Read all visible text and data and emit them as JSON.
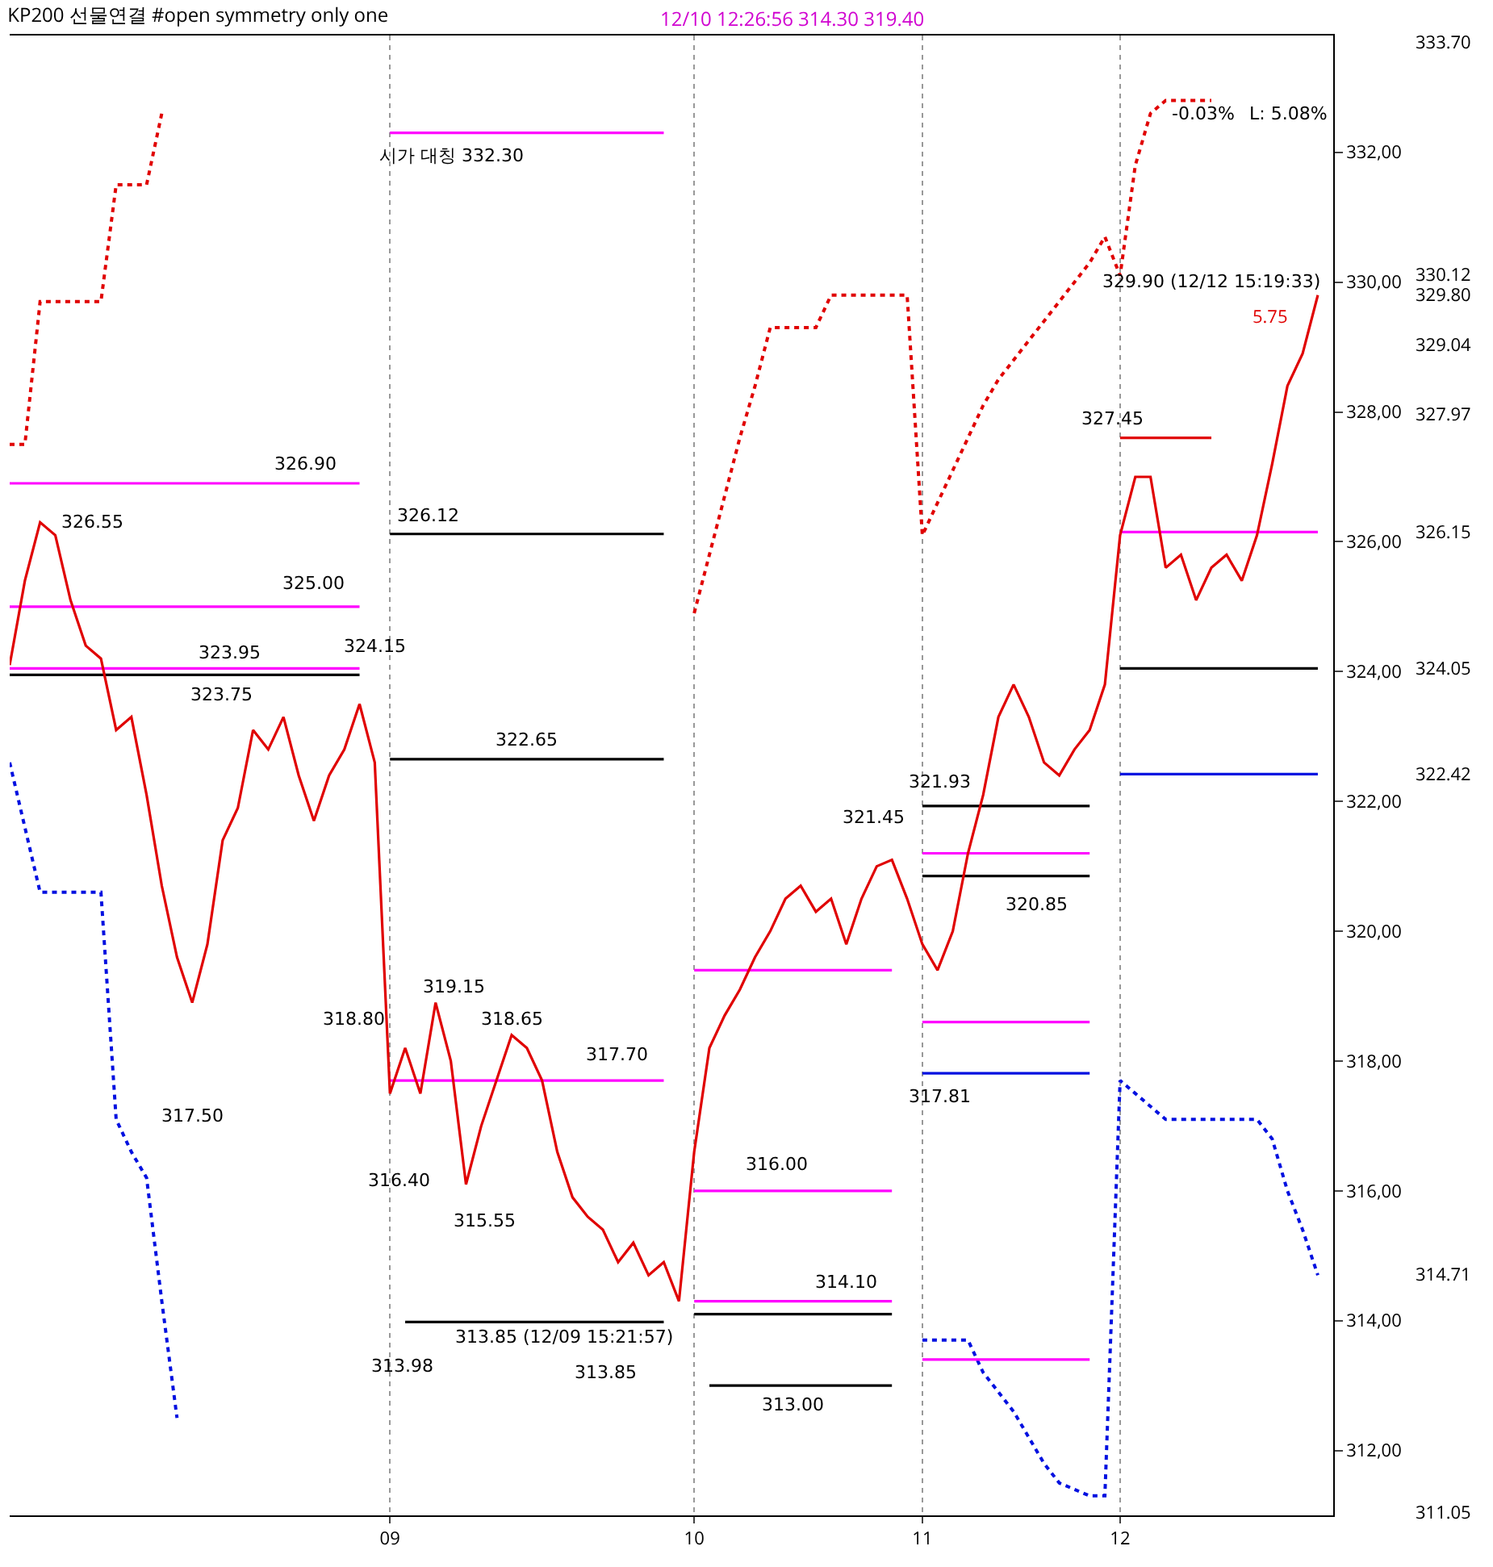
{
  "chart_data": {
    "type": "line",
    "title": "KP200 선물연결 #open symmetry only one",
    "subtitle": "12/10 12:26:56 314.30 319.40",
    "categories": [
      null,
      null,
      null,
      null,
      null,
      null,
      null,
      null,
      null,
      null,
      null,
      null,
      null,
      null,
      null,
      null,
      null,
      null,
      null,
      null,
      null,
      null,
      null,
      null,
      null,
      "09",
      null,
      null,
      null,
      null,
      null,
      null,
      null,
      null,
      null,
      null,
      null,
      null,
      null,
      null,
      null,
      null,
      null,
      null,
      null,
      "10",
      null,
      null,
      null,
      null,
      null,
      null,
      null,
      null,
      null,
      null,
      null,
      null,
      null,
      null,
      "11",
      null,
      null,
      null,
      null,
      null,
      null,
      null,
      null,
      null,
      null,
      null,
      null,
      "12",
      null,
      null,
      null,
      null,
      null,
      null,
      null,
      null,
      null,
      null,
      null,
      null,
      null,
      null
    ],
    "ylim": [
      311.0,
      333.8
    ],
    "yticks": [
      {
        "value": 312,
        "label": "312,00"
      },
      {
        "value": 314,
        "label": "314,00"
      },
      {
        "value": 316,
        "label": "316,00"
      },
      {
        "value": 318,
        "label": "318,00"
      },
      {
        "value": 320,
        "label": "320,00"
      },
      {
        "value": 322,
        "label": "322,00"
      },
      {
        "value": 324,
        "label": "324,00"
      },
      {
        "value": 326,
        "label": "326,00"
      },
      {
        "value": 328,
        "label": "328,00"
      },
      {
        "value": 330,
        "label": "330,00"
      },
      {
        "value": 332,
        "label": "332,00"
      }
    ],
    "y2lim": [
      311.0,
      333.8
    ],
    "y2ticks": [
      {
        "value": 333.7,
        "label": "333.70"
      },
      {
        "value": 330.12,
        "label": "330.12"
      },
      {
        "value": 329.8,
        "label": "329.80"
      },
      {
        "value": 329.04,
        "label": "329.04"
      },
      {
        "value": 327.97,
        "label": "327.97"
      },
      {
        "value": 326.15,
        "label": "326.15"
      },
      {
        "value": 324.05,
        "label": "324.05"
      },
      {
        "value": 322.42,
        "label": "322.42"
      },
      {
        "value": 314.71,
        "label": "314.71"
      },
      {
        "value": 311.05,
        "label": "311.05"
      }
    ],
    "grid": "x",
    "marker": "none",
    "series": [
      {
        "color": "#e00000",
        "line_style": "solid",
        "axis": "y2",
        "values": [
          324.1,
          325.4,
          326.3,
          326.1,
          325.1,
          324.4,
          324.2,
          323.1,
          323.3,
          322.1,
          320.7,
          319.6,
          318.9,
          319.8,
          321.4,
          321.9,
          323.1,
          322.8,
          323.3,
          322.4,
          321.7,
          322.4,
          322.8,
          323.5,
          322.6,
          317.5,
          318.2,
          317.5,
          318.9,
          318.0,
          316.1,
          317.0,
          317.7,
          318.4,
          318.2,
          317.7,
          316.6,
          315.9,
          315.6,
          315.4,
          314.9,
          315.2,
          314.7,
          314.9,
          314.3,
          316.6,
          318.2,
          318.7,
          319.1,
          319.6,
          320.0,
          320.5,
          320.7,
          320.3,
          320.5,
          319.8,
          320.5,
          321.0,
          321.1,
          320.5,
          319.8,
          319.4,
          320.0,
          321.2,
          322.1,
          323.3,
          323.8,
          323.3,
          322.6,
          322.4,
          322.8,
          323.1,
          323.8,
          326.1,
          327.0,
          327.0,
          325.6,
          325.8,
          325.1,
          325.6,
          325.8,
          325.4,
          326.1,
          327.2,
          328.4,
          328.9,
          329.8,
          null
        ]
      },
      {
        "color": "#e00000",
        "line_style": "dotted",
        "values": [
          327.5,
          327.5,
          329.7,
          329.7,
          329.7,
          329.7,
          329.7,
          331.5,
          331.5,
          331.5,
          332.6,
          null,
          null,
          null,
          null,
          null,
          null,
          null,
          null,
          null,
          null,
          null,
          null,
          null,
          null,
          null,
          null,
          null,
          null,
          null,
          null,
          null,
          null,
          null,
          null,
          null,
          null,
          null,
          null,
          null,
          null,
          null,
          null,
          null,
          null,
          324.9,
          325.8,
          326.7,
          327.6,
          328.4,
          329.3,
          329.3,
          329.3,
          329.3,
          329.8,
          329.8,
          329.8,
          329.8,
          329.8,
          329.8,
          326.1,
          326.6,
          327.1,
          327.6,
          328.1,
          328.5,
          328.8,
          329.1,
          329.4,
          329.7,
          330.0,
          330.3,
          330.7,
          330.1,
          331.8,
          332.6,
          332.8,
          332.8,
          332.8,
          332.8,
          null,
          null,
          null,
          null,
          null,
          null,
          null,
          null
        ]
      },
      {
        "color": "#0010e0",
        "line_style": "dotted",
        "values": [
          322.6,
          321.6,
          320.6,
          320.6,
          320.6,
          320.6,
          320.6,
          317.1,
          316.6,
          316.2,
          314.3,
          312.5,
          null,
          null,
          null,
          null,
          null,
          null,
          null,
          null,
          null,
          null,
          null,
          null,
          null,
          null,
          null,
          null,
          null,
          null,
          null,
          null,
          null,
          null,
          null,
          null,
          null,
          null,
          null,
          null,
          null,
          null,
          null,
          null,
          null,
          null,
          null,
          null,
          null,
          null,
          null,
          null,
          null,
          null,
          null,
          null,
          null,
          null,
          null,
          null,
          313.7,
          313.7,
          313.7,
          313.7,
          313.2,
          312.9,
          312.6,
          312.2,
          311.8,
          311.5,
          311.4,
          311.3,
          311.3,
          317.7,
          317.5,
          317.3,
          317.1,
          317.1,
          317.1,
          317.1,
          317.1,
          317.1,
          317.1,
          316.8,
          316.0,
          315.4,
          314.7,
          null
        ]
      },
      {
        "color": "#ff00ff",
        "line_style": "solid",
        "values": [
          325.0,
          325.0,
          325.0,
          325.0,
          325.0,
          325.0,
          325.0,
          325.0,
          325.0,
          325.0,
          325.0,
          325.0,
          325.0,
          325.0,
          325.0,
          325.0,
          325.0,
          325.0,
          325.0,
          325.0,
          325.0,
          325.0,
          325.0,
          325.0,
          null,
          317.7,
          317.7,
          317.7,
          317.7,
          317.7,
          317.7,
          317.7,
          317.7,
          317.7,
          317.7,
          317.7,
          317.7,
          317.7,
          317.7,
          317.7,
          317.7,
          317.7,
          317.7,
          317.7,
          null,
          316.0,
          316.0,
          316.0,
          316.0,
          316.0,
          316.0,
          316.0,
          316.0,
          316.0,
          316.0,
          316.0,
          316.0,
          316.0,
          316.0,
          null,
          318.6,
          318.6,
          318.6,
          318.6,
          318.6,
          318.6,
          318.6,
          318.6,
          318.6,
          318.6,
          318.6,
          318.6,
          null,
          326.15,
          326.15,
          326.15,
          326.15,
          326.15,
          326.15,
          326.15,
          326.15,
          326.15,
          326.15,
          326.15,
          326.15,
          326.15,
          326.15,
          null
        ]
      },
      {
        "color": "#000000",
        "line_style": "solid",
        "values": [
          323.95,
          323.95,
          323.95,
          323.95,
          323.95,
          323.95,
          323.95,
          323.95,
          323.95,
          323.95,
          323.95,
          323.95,
          323.95,
          323.95,
          323.95,
          323.95,
          323.95,
          323.95,
          323.95,
          323.95,
          323.95,
          323.95,
          323.95,
          323.95,
          null,
          322.65,
          322.65,
          322.65,
          322.65,
          322.65,
          322.65,
          322.65,
          322.65,
          322.65,
          322.65,
          322.65,
          322.65,
          322.65,
          322.65,
          322.65,
          322.65,
          322.65,
          322.65,
          322.65,
          null,
          314.1,
          314.1,
          314.1,
          314.1,
          314.1,
          314.1,
          314.1,
          314.1,
          314.1,
          314.1,
          314.1,
          314.1,
          314.1,
          314.1,
          null,
          320.85,
          320.85,
          320.85,
          320.85,
          320.85,
          320.85,
          320.85,
          320.85,
          320.85,
          320.85,
          320.85,
          320.85,
          null,
          324.05,
          324.05,
          324.05,
          324.05,
          324.05,
          324.05,
          324.05,
          324.05,
          324.05,
          324.05,
          324.05,
          324.05,
          324.05,
          324.05,
          null
        ]
      },
      {
        "color": "#ff00ff",
        "line_style": "solid",
        "values": [
          326.9,
          326.9,
          326.9,
          326.9,
          326.9,
          326.9,
          326.9,
          326.9,
          326.9,
          326.9,
          326.9,
          326.9,
          326.9,
          326.9,
          326.9,
          326.9,
          326.9,
          326.9,
          326.9,
          326.9,
          326.9,
          326.9,
          326.9,
          326.9,
          null,
          332.3,
          332.3,
          332.3,
          332.3,
          332.3,
          332.3,
          332.3,
          332.3,
          332.3,
          332.3,
          332.3,
          332.3,
          332.3,
          332.3,
          332.3,
          332.3,
          332.3,
          332.3,
          332.3,
          null,
          319.4,
          319.4,
          319.4,
          319.4,
          319.4,
          319.4,
          319.4,
          319.4,
          319.4,
          319.4,
          319.4,
          319.4,
          319.4,
          319.4,
          null,
          321.2,
          321.2,
          321.2,
          321.2,
          321.2,
          321.2,
          321.2,
          321.2,
          321.2,
          321.2,
          321.2,
          321.2,
          null,
          null,
          null,
          null,
          null,
          null,
          null,
          null,
          null,
          null,
          null,
          null,
          null,
          null,
          null,
          null
        ]
      },
      {
        "color": "#ff00ff",
        "line_style": "solid",
        "values": [
          324.05,
          324.05,
          324.05,
          324.05,
          324.05,
          324.05,
          324.05,
          324.05,
          324.05,
          324.05,
          324.05,
          324.05,
          324.05,
          324.05,
          324.05,
          324.05,
          324.05,
          324.05,
          324.05,
          324.05,
          324.05,
          324.05,
          324.05,
          324.05,
          null,
          null,
          null,
          null,
          null,
          null,
          null,
          null,
          null,
          null,
          null,
          null,
          null,
          null,
          null,
          null,
          null,
          null,
          null,
          null,
          null,
          314.3,
          314.3,
          314.3,
          314.3,
          314.3,
          314.3,
          314.3,
          314.3,
          314.3,
          314.3,
          314.3,
          314.3,
          314.3,
          314.3,
          null,
          313.4,
          313.4,
          313.4,
          313.4,
          313.4,
          313.4,
          313.4,
          313.4,
          313.4,
          313.4,
          313.4,
          313.4,
          null,
          null,
          null,
          null,
          null,
          null,
          null,
          null,
          null,
          null,
          null,
          null,
          null,
          null,
          null,
          null
        ]
      },
      {
        "color": "#000000",
        "line_style": "solid",
        "values": [
          null,
          null,
          null,
          null,
          null,
          null,
          null,
          null,
          null,
          null,
          null,
          null,
          null,
          null,
          null,
          null,
          null,
          null,
          null,
          null,
          null,
          null,
          null,
          null,
          null,
          326.12,
          326.12,
          326.12,
          326.12,
          326.12,
          326.12,
          326.12,
          326.12,
          326.12,
          326.12,
          326.12,
          326.12,
          326.12,
          326.12,
          326.12,
          326.12,
          326.12,
          326.12,
          326.12,
          null,
          null,
          null,
          null,
          null,
          null,
          null,
          null,
          null,
          null,
          null,
          null,
          null,
          null,
          null,
          null,
          321.93,
          321.93,
          321.93,
          321.93,
          321.93,
          321.93,
          321.93,
          321.93,
          321.93,
          321.93,
          321.93,
          321.93,
          null,
          null,
          null,
          null,
          null,
          null,
          null,
          null,
          null,
          null,
          null,
          null,
          null,
          null,
          null,
          null
        ]
      },
      {
        "color": "#000000",
        "line_style": "solid",
        "values": [
          null,
          null,
          null,
          null,
          null,
          null,
          null,
          null,
          null,
          null,
          null,
          null,
          null,
          null,
          null,
          null,
          null,
          null,
          null,
          null,
          null,
          null,
          null,
          null,
          null,
          null,
          313.98,
          313.98,
          313.98,
          313.98,
          313.98,
          313.98,
          313.98,
          313.98,
          313.98,
          313.98,
          313.98,
          313.98,
          313.98,
          313.98,
          313.98,
          313.98,
          313.98,
          313.98,
          null,
          null,
          313.0,
          313.0,
          313.0,
          313.0,
          313.0,
          313.0,
          313.0,
          313.0,
          313.0,
          313.0,
          313.0,
          313.0,
          313.0,
          null,
          null,
          null,
          null,
          null,
          null,
          null,
          null,
          null,
          null,
          null,
          null,
          null,
          null,
          null,
          null,
          null,
          null,
          null,
          null,
          null,
          null,
          null,
          null,
          null,
          null,
          null,
          null,
          null
        ]
      },
      {
        "color": "#0010e0",
        "line_style": "solid",
        "values": [
          null,
          null,
          null,
          null,
          null,
          null,
          null,
          null,
          null,
          null,
          null,
          null,
          null,
          null,
          null,
          null,
          null,
          null,
          null,
          null,
          null,
          null,
          null,
          null,
          null,
          null,
          null,
          null,
          null,
          null,
          null,
          null,
          null,
          null,
          null,
          null,
          null,
          null,
          null,
          null,
          null,
          null,
          null,
          null,
          null,
          null,
          null,
          null,
          null,
          null,
          null,
          null,
          null,
          null,
          null,
          null,
          null,
          null,
          null,
          null,
          317.81,
          317.81,
          317.81,
          317.81,
          317.81,
          317.81,
          317.81,
          317.81,
          317.81,
          317.81,
          317.81,
          317.81,
          null,
          322.42,
          322.42,
          322.42,
          322.42,
          322.42,
          322.42,
          322.42,
          322.42,
          322.42,
          322.42,
          322.42,
          322.42,
          322.42,
          322.42,
          null
        ]
      },
      {
        "color": "#e00000",
        "line_style": "solid",
        "values": [
          null,
          null,
          null,
          null,
          null,
          null,
          null,
          null,
          null,
          null,
          null,
          null,
          null,
          null,
          null,
          null,
          null,
          null,
          null,
          null,
          null,
          null,
          null,
          null,
          null,
          null,
          null,
          null,
          null,
          null,
          null,
          null,
          null,
          null,
          null,
          null,
          null,
          null,
          null,
          null,
          null,
          null,
          null,
          null,
          null,
          null,
          null,
          null,
          null,
          null,
          null,
          null,
          null,
          null,
          null,
          null,
          null,
          null,
          null,
          null,
          null,
          null,
          null,
          null,
          null,
          null,
          null,
          null,
          null,
          null,
          null,
          null,
          null,
          327.6,
          327.6,
          327.6,
          327.6,
          327.6,
          327.6,
          327.6,
          null,
          null,
          null,
          null,
          null,
          null,
          null,
          null
        ]
      }
    ],
    "annotations": [
      "시가 대칭 332.30",
      "326.90",
      "326.55",
      "325.00",
      "323.95",
      "323.75",
      "324.15",
      "322.65",
      "326.12",
      "317.50",
      "318.80",
      "319.15",
      "318.65",
      "317.70",
      "316.40",
      "315.55",
      "313.98",
      "313.85 (12/09 15:21:57)",
      "313.85",
      "316.00",
      "314.10",
      "313.00",
      "321.45",
      "321.93",
      "320.85",
      "317.81",
      "327.45",
      "329.90 (12/12 15:19:33)",
      "-0.03%",
      "L: 5.08%",
      "5.75"
    ]
  }
}
